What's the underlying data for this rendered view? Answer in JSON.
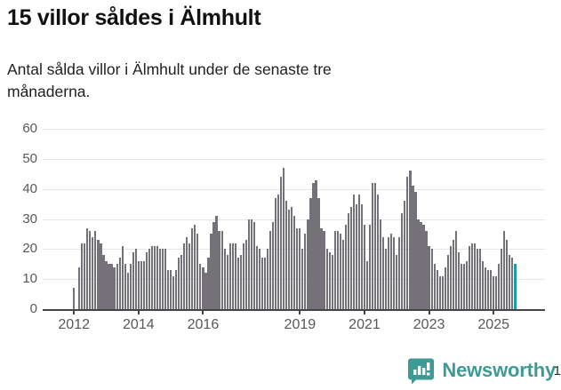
{
  "header": {
    "title": "15 villor såldes i Älmhult",
    "subtitle": "Antal sålda villor i Älmhult under de senaste tre\nmånaderna."
  },
  "chart_data": {
    "type": "bar",
    "title": "15 villor såldes i Älmhult",
    "subtitle": "Antal sålda villor i Älmhult under de senaste tre månaderna.",
    "unit": "sålda villor per 3-månadersperiod",
    "x_start_month": "2012-01",
    "x_end_month": "2025-09",
    "values": [
      7,
      0,
      14,
      22,
      22,
      27,
      26,
      24,
      26,
      23,
      22,
      18,
      16,
      15,
      15,
      14,
      15,
      17,
      21,
      15,
      12,
      15,
      19,
      20,
      16,
      16,
      16,
      19,
      20,
      21,
      21,
      21,
      20,
      20,
      20,
      13,
      13,
      11,
      13,
      17,
      18,
      22,
      24,
      22,
      27,
      28,
      25,
      15,
      14,
      12,
      17,
      25,
      29,
      31,
      26,
      26,
      20,
      18,
      22,
      22,
      22,
      17,
      18,
      22,
      23,
      30,
      30,
      29,
      21,
      20,
      17,
      17,
      20,
      26,
      29,
      37,
      38,
      44,
      47,
      36,
      33,
      34,
      31,
      27,
      27,
      20,
      25,
      30,
      37,
      42,
      43,
      37,
      27,
      26,
      20,
      19,
      18,
      26,
      26,
      25,
      23,
      28,
      32,
      34,
      38,
      35,
      38,
      35,
      28,
      16,
      28,
      42,
      42,
      38,
      30,
      24,
      20,
      24,
      25,
      24,
      18,
      24,
      32,
      36,
      44,
      46,
      41,
      39,
      30,
      29,
      28,
      26,
      21,
      20,
      15,
      13,
      11,
      11,
      14,
      18,
      21,
      23,
      26,
      19,
      15,
      15,
      16,
      21,
      22,
      22,
      20,
      20,
      16,
      14,
      13,
      13,
      11,
      11,
      15,
      20,
      26,
      23,
      18,
      17,
      15
    ],
    "last_value_label": "15",
    "y_ticks": [
      0,
      10,
      20,
      30,
      40,
      50,
      60
    ],
    "ylim": [
      0,
      60
    ],
    "x_tick_labels": [
      "2012",
      "2014",
      "2016",
      "2019",
      "2021",
      "2023",
      "2025"
    ],
    "x_tick_month_index": [
      0,
      24,
      48,
      84,
      108,
      132,
      156
    ],
    "grid": true,
    "bar_color": "#757179",
    "highlight_color": "#1f9ba6"
  },
  "footer": {
    "brand": "Newsworthy",
    "brand_color": "#3d9a94",
    "logo_icon": "bar-chart-speech-bubble-icon"
  }
}
